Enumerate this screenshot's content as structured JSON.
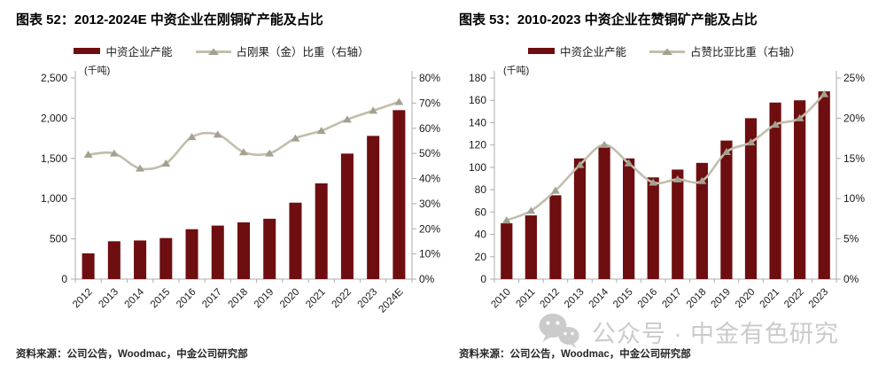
{
  "panels": [
    {
      "title": "图表 52：2012-2024E 中资企业在刚铜矿产能及占比",
      "unit_label": "(千吨)",
      "legend_bar": "中资企业产能",
      "legend_line": "占刚果（金）比重（右轴）",
      "source": "资料来源：公司公告，Woodmac，中金公司研究部"
    },
    {
      "title": "图表 53：2010-2023 中资企业在赞铜矿产能及占比",
      "unit_label": "(千吨)",
      "legend_bar": "中资企业产能",
      "legend_line": "占赞比亚比重（右轴）",
      "source": "资料来源：公司公告，Woodmac，中金公司研究部"
    }
  ],
  "chart_data": [
    {
      "type": "bar+line",
      "title": "图表 52：2012-2024E 中资企业在刚铜矿产能及占比",
      "categories": [
        "2012",
        "2013",
        "2014",
        "2015",
        "2016",
        "2017",
        "2018",
        "2019",
        "2020",
        "2021",
        "2022",
        "2023",
        "2024E"
      ],
      "series": [
        {
          "name": "中资企业产能",
          "type": "bar",
          "axis": "left",
          "values": [
            320,
            470,
            480,
            510,
            620,
            665,
            705,
            750,
            950,
            1190,
            1560,
            1780,
            2100
          ]
        },
        {
          "name": "占刚果（金）比重（右轴）",
          "type": "line",
          "axis": "right",
          "values": [
            49.5,
            50,
            44,
            46,
            56.5,
            57.5,
            50.5,
            50,
            56,
            59,
            63.5,
            67,
            70.5
          ]
        }
      ],
      "left_axis": {
        "label": "(千吨)",
        "min": 0,
        "max": 2500,
        "step": 500,
        "thousands": true,
        "suffix": ""
      },
      "right_axis": {
        "min": 0,
        "max": 80,
        "step": 10,
        "thousands": false,
        "suffix": "%"
      },
      "grid": false,
      "legend_position": "top"
    },
    {
      "type": "bar+line",
      "title": "图表 53：2010-2023 中资企业在赞铜矿产能及占比",
      "categories": [
        "2010",
        "2011",
        "2012",
        "2013",
        "2014",
        "2015",
        "2016",
        "2017",
        "2018",
        "2019",
        "2020",
        "2021",
        "2022",
        "2023"
      ],
      "series": [
        {
          "name": "中资企业产能",
          "type": "bar",
          "axis": "left",
          "values": [
            50,
            57,
            75,
            108,
            118,
            108,
            91,
            98,
            104,
            124,
            144,
            158,
            160,
            168
          ]
        },
        {
          "name": "占赞比亚比重（右轴）",
          "type": "line",
          "axis": "right",
          "values": [
            7.3,
            8.5,
            11,
            14.2,
            16.7,
            14.4,
            12,
            12.4,
            12.2,
            15.8,
            17,
            19.2,
            20,
            23
          ]
        }
      ],
      "left_axis": {
        "label": "(千吨)",
        "min": 0,
        "max": 180,
        "step": 20,
        "thousands": false,
        "suffix": ""
      },
      "right_axis": {
        "min": 0,
        "max": 25,
        "step": 5,
        "thousands": false,
        "suffix": "%"
      },
      "grid": false,
      "legend_position": "top"
    }
  ],
  "watermark": {
    "text": "公众号 · 中金有色研究",
    "icon": "wechat-icon"
  },
  "colors": {
    "bar": "#6E0E10",
    "line": "#C2BEAC",
    "marker": "#A5A191",
    "axis": "#ACACAC",
    "text": "#1a1a1a",
    "watermark": "#CBCBCB"
  }
}
